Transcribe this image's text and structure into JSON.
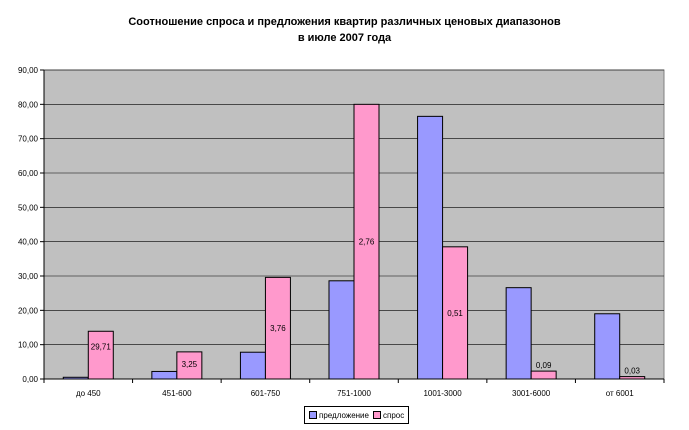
{
  "chart_data": {
    "type": "bar",
    "title": "Соотношение спроса и предложения квартир различных ценовых диапазонов",
    "subtitle": "в июле 2007 года",
    "categories": [
      "до 450",
      "451-600",
      "601-750",
      "751-1000",
      "1001-3000",
      "3001-6000",
      "от 6001"
    ],
    "series": [
      {
        "name": "предложение",
        "color": "#9999ff",
        "values": [
          0.5,
          2.2,
          7.8,
          28.6,
          76.5,
          26.6,
          19.0
        ]
      },
      {
        "name": "спрос",
        "color": "#ff99cc",
        "values": [
          13.9,
          7.9,
          29.6,
          80.0,
          38.5,
          2.3,
          0.7
        ],
        "data_labels": [
          "29,71",
          "3,25",
          "3,76",
          "2,76",
          "0,51",
          "0,09",
          "0,03"
        ]
      }
    ],
    "y_ticks": [
      "0,00",
      "10,00",
      "20,00",
      "30,00",
      "40,00",
      "50,00",
      "60,00",
      "70,00",
      "80,00",
      "90,00"
    ],
    "ylim": [
      0,
      90
    ],
    "grid": true,
    "plot_background": "#c0c0c0",
    "legend_position": "bottom"
  }
}
